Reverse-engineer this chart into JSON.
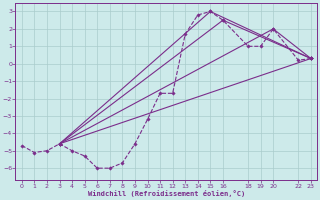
{
  "xlabel": "Windchill (Refroidissement éolien,°C)",
  "line_color": "#7B2D8B",
  "bg_color": "#CDEAEA",
  "grid_color": "#AACCCC",
  "x_data": [
    0,
    1,
    2,
    3,
    4,
    5,
    6,
    7,
    8,
    9,
    10,
    11,
    12,
    13,
    14,
    15,
    16,
    18,
    19,
    20,
    22,
    23
  ],
  "y_data": [
    -4.7,
    -5.1,
    -5.0,
    -4.6,
    -5.0,
    -5.3,
    -6.0,
    -6.0,
    -5.7,
    -4.6,
    -3.2,
    -1.7,
    -1.7,
    1.7,
    2.8,
    3.0,
    2.5,
    1.0,
    1.0,
    2.0,
    0.2,
    0.3
  ],
  "line2_x": [
    3,
    23
  ],
  "line2_y": [
    -4.6,
    0.3
  ],
  "line3_x": [
    3,
    15,
    23
  ],
  "line3_y": [
    -4.6,
    3.0,
    0.3
  ],
  "line4_x": [
    3,
    20,
    23
  ],
  "line4_y": [
    -4.6,
    2.0,
    0.3
  ],
  "line5_x": [
    3,
    16,
    23
  ],
  "line5_y": [
    -4.6,
    2.5,
    0.3
  ],
  "xlim": [
    -0.5,
    23.5
  ],
  "ylim": [
    -6.7,
    3.5
  ],
  "xticks": [
    0,
    1,
    2,
    3,
    4,
    5,
    6,
    7,
    8,
    9,
    10,
    11,
    12,
    13,
    14,
    15,
    16,
    18,
    19,
    20,
    22,
    23
  ],
  "yticks": [
    -6,
    -5,
    -4,
    -3,
    -2,
    -1,
    0,
    1,
    2,
    3
  ]
}
